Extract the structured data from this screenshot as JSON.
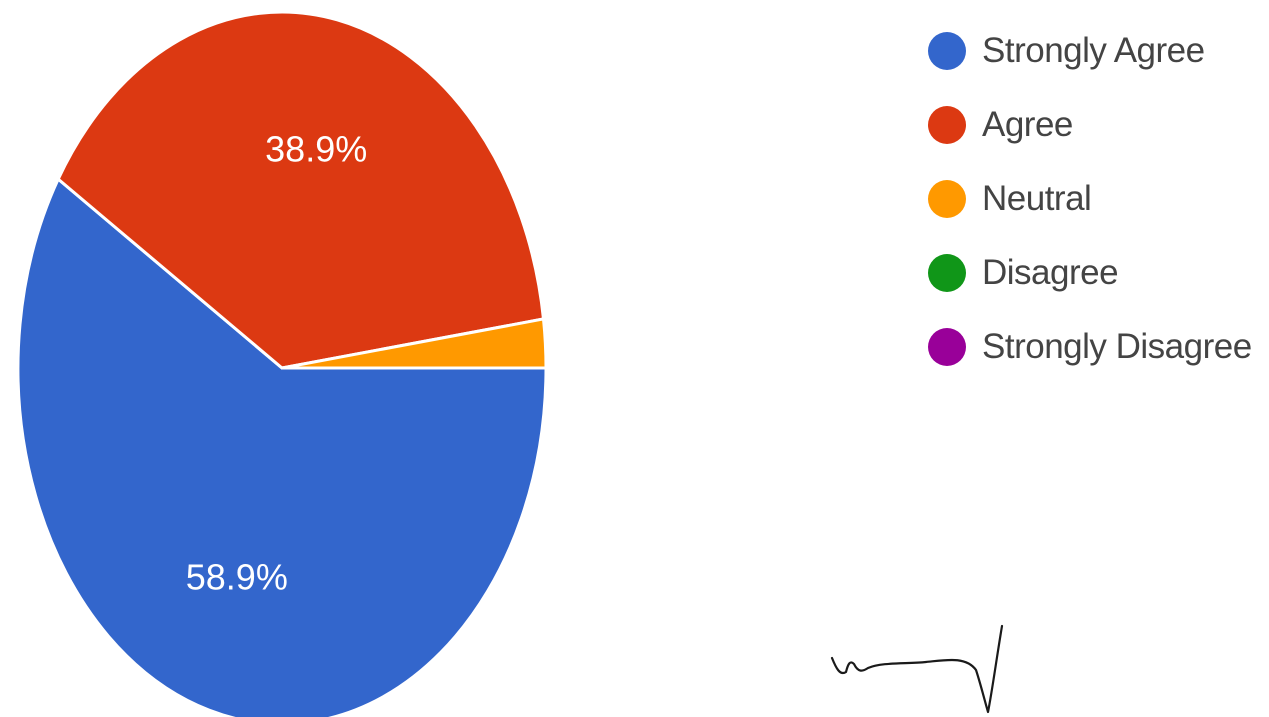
{
  "chart_data": {
    "type": "pie",
    "title": "",
    "categories": [
      "Strongly Agree",
      "Agree",
      "Neutral",
      "Disagree",
      "Strongly Disagree"
    ],
    "values": [
      58.9,
      38.9,
      2.2,
      0,
      0
    ],
    "colors": [
      "#3366cc",
      "#dc3912",
      "#ff9900",
      "#109618",
      "#990099"
    ],
    "data_labels": [
      "58.9%",
      "38.9%",
      "",
      "",
      ""
    ],
    "legend": {
      "position": "right",
      "entries": [
        "Strongly Agree",
        "Agree",
        "Neutral",
        "Disagree",
        "Strongly Disagree"
      ]
    }
  }
}
